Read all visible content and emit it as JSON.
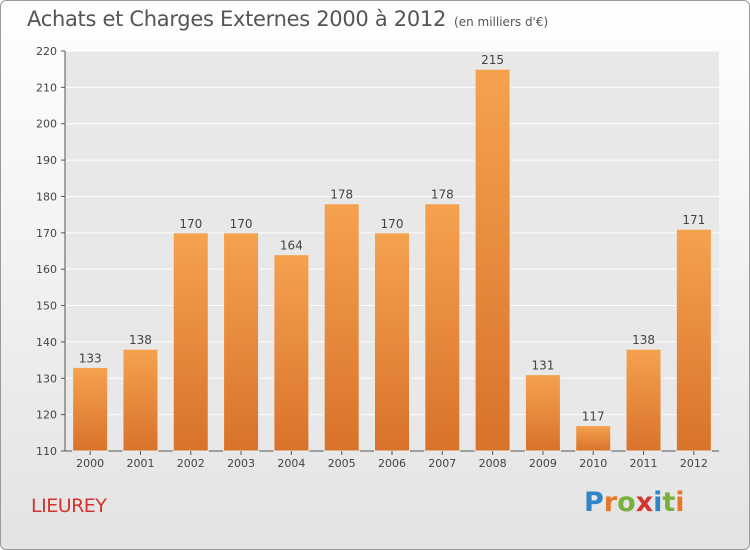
{
  "header": {
    "title": "Achats et Charges Externes 2000 à 2012",
    "unit": "(en milliers d'€)"
  },
  "commune": "LIEUREY",
  "logo": {
    "letters": [
      "P",
      "r",
      "o",
      "x",
      "i",
      "t",
      "i"
    ],
    "colors": [
      "#2e86c9",
      "#e8762b",
      "#7ab03d",
      "#d3342d",
      "#2e86c9",
      "#7ab03d",
      "#e8762b"
    ]
  },
  "colors": {
    "bar_top": "#f5a24f",
    "bar_bottom": "#d9722a",
    "commune": "#d3342d"
  },
  "chart_data": {
    "type": "bar",
    "title": "Achats et Charges Externes 2000 à 2012",
    "categories": [
      "2000",
      "2001",
      "2002",
      "2003",
      "2004",
      "2005",
      "2006",
      "2007",
      "2008",
      "2009",
      "2010",
      "2011",
      "2012"
    ],
    "values": [
      133,
      138,
      170,
      170,
      164,
      178,
      170,
      178,
      215,
      131,
      117,
      138,
      171
    ],
    "ylim": [
      110,
      220
    ],
    "yticks": [
      110,
      120,
      130,
      140,
      150,
      160,
      170,
      180,
      190,
      200,
      210,
      220
    ],
    "grid": true
  }
}
